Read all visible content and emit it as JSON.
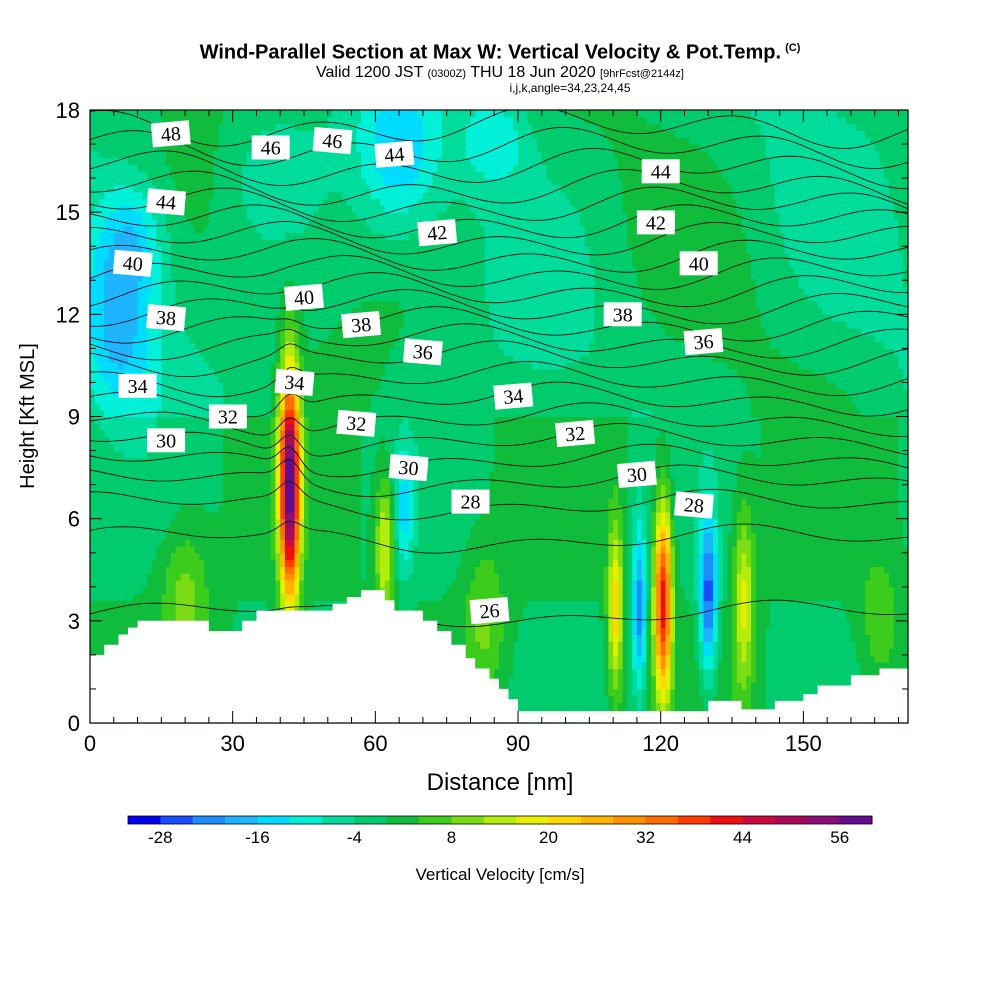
{
  "title": {
    "main": "Wind-Parallel Section at Max W: Vertical Velocity & Pot.Temp.",
    "copyright": "(C)",
    "valid_main": "Valid 1200 JST",
    "valid_utc": "(0300Z)",
    "valid_date": "THU 18 Jun 2020",
    "forecast": "[9hrFcst@2144z]",
    "indices": "i,j,k,angle=34,23,24,45"
  },
  "chart_data": {
    "type": "heatmap",
    "xlabel": "Distance [nm]",
    "ylabel": "Height [Kft MSL]",
    "xlim": [
      0,
      172
    ],
    "ylim": [
      0,
      18
    ],
    "x_ticks": [
      0,
      30,
      60,
      90,
      120,
      150
    ],
    "y_ticks": [
      0,
      3,
      6,
      9,
      12,
      15,
      18
    ],
    "colorbar": {
      "label": "Vertical Velocity [cm/s]",
      "ticks": [
        -28,
        -16,
        -4,
        8,
        20,
        32,
        44,
        56
      ],
      "min": -32,
      "step": 4,
      "colors": [
        "#0000ee",
        "#1a4cff",
        "#1e8cff",
        "#1eb4ff",
        "#00dcff",
        "#00f0d8",
        "#00dc9c",
        "#00cc6e",
        "#10bc3c",
        "#3ccc1c",
        "#7cdc14",
        "#b4ec0c",
        "#e8f000",
        "#ffd800",
        "#ffb400",
        "#ff9000",
        "#ff6c00",
        "#ff3c00",
        "#ee1010",
        "#cc0840",
        "#a80a5a",
        "#880e78",
        "#640a8c"
      ]
    },
    "background_w": 0,
    "updrafts": [
      {
        "x": 42,
        "y": 7.0,
        "sx": 1.5,
        "sy": 2.4,
        "peak": 60
      },
      {
        "x": 120.5,
        "y": 3.6,
        "sx": 1.3,
        "sy": 2.0,
        "peak": 42
      },
      {
        "x": 110.5,
        "y": 3.4,
        "sx": 1.1,
        "sy": 1.8,
        "peak": 22
      },
      {
        "x": 137.5,
        "y": 3.6,
        "sx": 1.6,
        "sy": 1.9,
        "peak": 17
      },
      {
        "x": 62,
        "y": 5.2,
        "sx": 1.4,
        "sy": 1.4,
        "peak": 18
      },
      {
        "x": 20,
        "y": 3.6,
        "sx": 3.5,
        "sy": 1.6,
        "peak": 10
      },
      {
        "x": 83,
        "y": 3.0,
        "sx": 3.0,
        "sy": 1.5,
        "peak": 9
      },
      {
        "x": 166,
        "y": 3.0,
        "sx": 3.0,
        "sy": 1.4,
        "peak": 7
      }
    ],
    "downdrafts": [
      {
        "x": 130,
        "y": 3.8,
        "sx": 1.3,
        "sy": 1.7,
        "peak": -26
      },
      {
        "x": 115.5,
        "y": 3.4,
        "sx": 1.0,
        "sy": 1.8,
        "peak": -22
      },
      {
        "x": 66,
        "y": 6.3,
        "sx": 1.5,
        "sy": 1.4,
        "peak": -12
      },
      {
        "x": 6,
        "y": 11.6,
        "sx": 5.5,
        "sy": 1.9,
        "peak": -14
      },
      {
        "x": 9,
        "y": 14.3,
        "sx": 5.0,
        "sy": 1.3,
        "peak": -11
      },
      {
        "x": 65,
        "y": 16.8,
        "sx": 6.0,
        "sy": 1.6,
        "peak": -13
      },
      {
        "x": 85,
        "y": 17.2,
        "sx": 5.0,
        "sy": 1.0,
        "peak": -9
      },
      {
        "x": 38,
        "y": 16.0,
        "sx": 6.0,
        "sy": 1.2,
        "peak": -6
      }
    ],
    "theta_contours": {
      "levels": [
        26,
        27,
        28,
        29,
        30,
        31,
        32,
        33,
        34,
        35,
        36,
        37,
        38,
        39,
        40,
        41,
        42,
        43,
        44,
        45,
        46,
        47,
        48
      ],
      "heights_kft": [
        3.2,
        5.4,
        6.4,
        7.1,
        7.7,
        8.3,
        8.9,
        9.5,
        10.1,
        10.7,
        11.2,
        11.7,
        12.2,
        12.7,
        13.2,
        13.7,
        14.2,
        14.7,
        15.2,
        15.7,
        16.3,
        16.9,
        17.5
      ]
    },
    "theta_labels": [
      {
        "text": "48",
        "x": 17,
        "y": 17.3
      },
      {
        "text": "46",
        "x": 38,
        "y": 16.9
      },
      {
        "text": "46",
        "x": 51,
        "y": 17.1
      },
      {
        "text": "44",
        "x": 64,
        "y": 16.7
      },
      {
        "text": "44",
        "x": 120,
        "y": 16.2
      },
      {
        "text": "44",
        "x": 16,
        "y": 15.3
      },
      {
        "text": "42",
        "x": 73,
        "y": 14.4
      },
      {
        "text": "42",
        "x": 119,
        "y": 14.7
      },
      {
        "text": "40",
        "x": 9,
        "y": 13.5
      },
      {
        "text": "40",
        "x": 45,
        "y": 12.5
      },
      {
        "text": "40",
        "x": 128,
        "y": 13.5
      },
      {
        "text": "38",
        "x": 16,
        "y": 11.9
      },
      {
        "text": "38",
        "x": 57,
        "y": 11.7
      },
      {
        "text": "38",
        "x": 112,
        "y": 12.0
      },
      {
        "text": "36",
        "x": 70,
        "y": 10.9
      },
      {
        "text": "36",
        "x": 129,
        "y": 11.2
      },
      {
        "text": "34",
        "x": 10,
        "y": 9.9
      },
      {
        "text": "34",
        "x": 43,
        "y": 10.0
      },
      {
        "text": "34",
        "x": 89,
        "y": 9.6
      },
      {
        "text": "32",
        "x": 29,
        "y": 9.0
      },
      {
        "text": "32",
        "x": 56,
        "y": 8.8
      },
      {
        "text": "32",
        "x": 102,
        "y": 8.5
      },
      {
        "text": "30",
        "x": 16,
        "y": 8.3
      },
      {
        "text": "30",
        "x": 67,
        "y": 7.5
      },
      {
        "text": "30",
        "x": 115,
        "y": 7.3
      },
      {
        "text": "28",
        "x": 80,
        "y": 6.5
      },
      {
        "text": "28",
        "x": 127,
        "y": 6.4
      },
      {
        "text": "26",
        "x": 84,
        "y": 3.3
      }
    ],
    "terrain": [
      [
        0,
        2.0
      ],
      [
        3,
        2.0
      ],
      [
        3,
        2.3
      ],
      [
        6,
        2.3
      ],
      [
        6,
        2.6
      ],
      [
        8,
        2.6
      ],
      [
        8,
        2.8
      ],
      [
        10,
        2.8
      ],
      [
        10,
        3.0
      ],
      [
        25,
        3.0
      ],
      [
        25,
        2.7
      ],
      [
        32,
        2.7
      ],
      [
        32,
        3.0
      ],
      [
        35,
        3.0
      ],
      [
        35,
        3.3
      ],
      [
        51,
        3.3
      ],
      [
        51,
        3.5
      ],
      [
        54,
        3.5
      ],
      [
        54,
        3.7
      ],
      [
        57,
        3.7
      ],
      [
        57,
        3.9
      ],
      [
        62,
        3.9
      ],
      [
        62,
        3.6
      ],
      [
        64,
        3.6
      ],
      [
        64,
        3.3
      ],
      [
        70,
        3.3
      ],
      [
        70,
        3.0
      ],
      [
        73,
        3.0
      ],
      [
        73,
        2.7
      ],
      [
        76,
        2.7
      ],
      [
        76,
        2.3
      ],
      [
        79,
        2.3
      ],
      [
        79,
        1.9
      ],
      [
        81,
        1.9
      ],
      [
        81,
        1.6
      ],
      [
        84,
        1.6
      ],
      [
        84,
        1.3
      ],
      [
        86,
        1.3
      ],
      [
        86,
        1.0
      ],
      [
        88,
        1.0
      ],
      [
        88,
        0.7
      ],
      [
        90,
        0.7
      ],
      [
        90,
        0.35
      ],
      [
        130,
        0.35
      ],
      [
        130,
        0.65
      ],
      [
        137,
        0.65
      ],
      [
        137,
        0.4
      ],
      [
        144,
        0.4
      ],
      [
        144,
        0.65
      ],
      [
        150,
        0.65
      ],
      [
        150,
        0.85
      ],
      [
        153,
        0.85
      ],
      [
        153,
        1.1
      ],
      [
        160,
        1.1
      ],
      [
        160,
        1.4
      ],
      [
        166,
        1.4
      ],
      [
        166,
        1.6
      ],
      [
        172,
        1.6
      ]
    ]
  }
}
